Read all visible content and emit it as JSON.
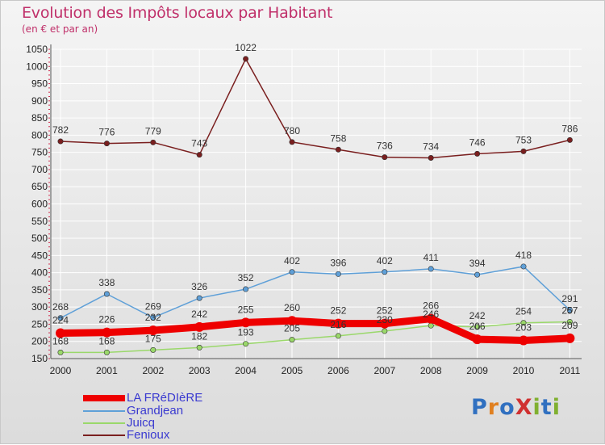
{
  "title": "Evolution des Impôts locaux par Habitant",
  "subtitle": "(en € et par an)",
  "logo": "ProXiti",
  "colors": {
    "title": "#c0306a",
    "la_frediere": "#ee0000",
    "grandjean": "#5fa0d8",
    "juicq": "#9ad86a",
    "fenioux": "#7a1f1f",
    "legend_text": "#3a3ad0",
    "grid": "#ffffff",
    "axis_text": "#222222"
  },
  "chart_data": {
    "type": "line",
    "title": "Evolution des Impôts locaux par Habitant",
    "subtitle": "(en € et par an)",
    "xlabel": "",
    "ylabel": "",
    "ylim": [
      150,
      1050
    ],
    "yticks": [
      150,
      200,
      250,
      300,
      350,
      400,
      450,
      500,
      550,
      600,
      650,
      700,
      750,
      800,
      850,
      900,
      950,
      1000,
      1050
    ],
    "categories": [
      "2000",
      "2001",
      "2002",
      "2003",
      "2004",
      "2005",
      "2006",
      "2007",
      "2008",
      "2009",
      "2010",
      "2011"
    ],
    "legend_position": "bottom-left",
    "series": [
      {
        "name": "LA FRéDIèRE",
        "key": "la_frediere",
        "values": [
          224,
          226,
          232,
          242,
          255,
          260,
          252,
          252,
          266,
          206,
          203,
          209
        ]
      },
      {
        "name": "Grandjean",
        "key": "grandjean",
        "values": [
          268,
          338,
          269,
          326,
          352,
          402,
          396,
          402,
          411,
          394,
          418,
          291
        ]
      },
      {
        "name": "Juicq",
        "key": "juicq",
        "values": [
          168,
          168,
          175,
          182,
          193,
          205,
          216,
          230,
          246,
          242,
          254,
          257
        ]
      },
      {
        "name": "Fenioux",
        "key": "fenioux",
        "values": [
          782,
          776,
          779,
          743,
          1022,
          780,
          758,
          736,
          734,
          746,
          753,
          786
        ]
      }
    ]
  }
}
